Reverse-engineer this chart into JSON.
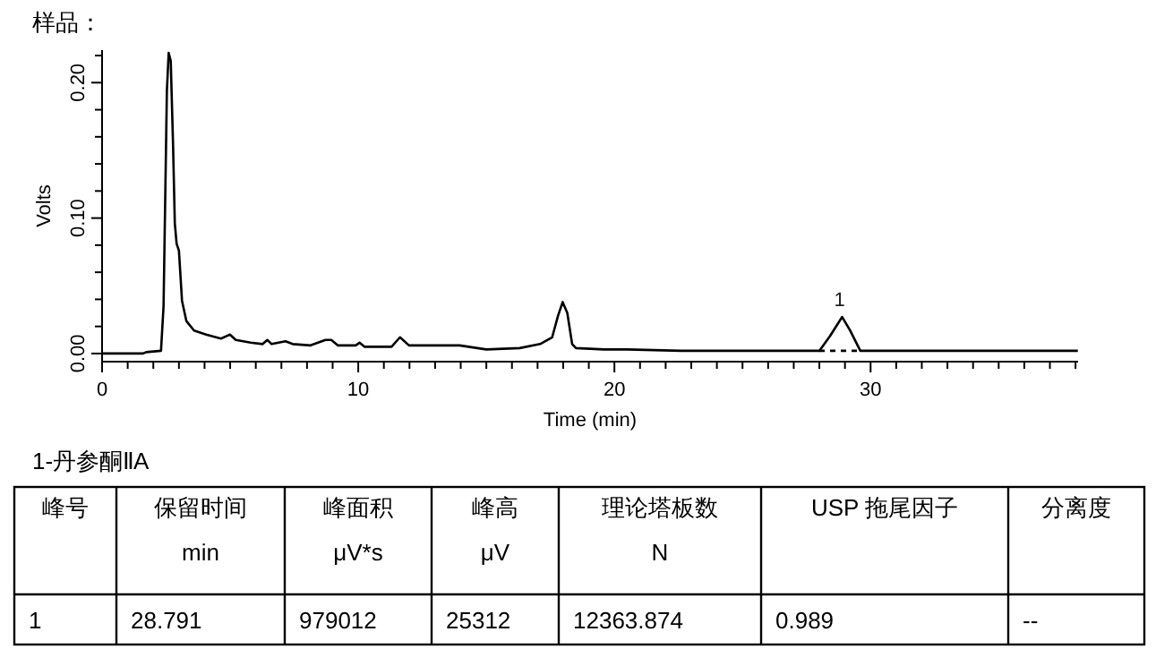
{
  "chart_data": {
    "type": "line",
    "title": "样品：",
    "xlabel": "Time (min)",
    "ylabel": "Volts",
    "xlim": [
      0,
      38.1
    ],
    "ylim": [
      -0.006,
      0.224
    ],
    "xticks": [
      0,
      {
        "value": 1,
        "label": null
      },
      {
        "value": 2,
        "label": null
      },
      {
        "value": 3,
        "label": null
      },
      {
        "value": 4,
        "label": null
      },
      {
        "value": 5,
        "label": null
      },
      {
        "value": 6,
        "label": null
      },
      {
        "value": 7,
        "label": null
      },
      {
        "value": 8,
        "label": null
      },
      {
        "value": 9,
        "label": null
      },
      10,
      {
        "value": 11,
        "label": null
      },
      {
        "value": 12,
        "label": null
      },
      {
        "value": 13,
        "label": null
      },
      {
        "value": 14,
        "label": null
      },
      {
        "value": 15,
        "label": null
      },
      {
        "value": 16,
        "label": null
      },
      {
        "value": 17,
        "label": null
      },
      {
        "value": 18,
        "label": null
      },
      {
        "value": 19,
        "label": null
      },
      20,
      {
        "value": 21,
        "label": null
      },
      {
        "value": 22,
        "label": null
      },
      {
        "value": 23,
        "label": null
      },
      {
        "value": 24,
        "label": null
      },
      {
        "value": 25,
        "label": null
      },
      {
        "value": 26,
        "label": null
      },
      {
        "value": 27,
        "label": null
      },
      {
        "value": 28,
        "label": null
      },
      {
        "value": 29,
        "label": null
      },
      30,
      {
        "value": 31,
        "label": null
      },
      {
        "value": 32,
        "label": null
      },
      {
        "value": 33,
        "label": null
      },
      {
        "value": 34,
        "label": null
      },
      {
        "value": 35,
        "label": null
      },
      {
        "value": 36,
        "label": null
      },
      {
        "value": 37,
        "label": null
      },
      {
        "value": 38,
        "label": null
      }
    ],
    "yticks": [
      {
        "value": 0,
        "label": "0.00"
      },
      {
        "value": 0.02,
        "label": null
      },
      {
        "value": 0.04,
        "label": null
      },
      {
        "value": 0.06,
        "label": null
      },
      {
        "value": 0.08,
        "label": null
      },
      {
        "value": 0.1,
        "label": "0.10"
      },
      {
        "value": 0.12,
        "label": null
      },
      {
        "value": 0.14,
        "label": null
      },
      {
        "value": 0.16,
        "label": null
      },
      {
        "value": 0.18,
        "label": null
      },
      {
        "value": 0.2,
        "label": "0.20"
      },
      {
        "value": 0.22,
        "label": null
      }
    ],
    "grid": false,
    "marker": "none",
    "line_style": "solid",
    "series": [
      {
        "color": "#000000",
        "x": [
          0,
          1.6,
          1.72,
          2.3,
          2.4,
          2.53,
          2.6,
          2.68,
          2.77,
          2.84,
          2.91,
          3.0,
          3.12,
          3.29,
          3.59,
          4.06,
          4.64,
          4.99,
          5.22,
          5.8,
          6.27,
          6.45,
          6.62,
          7.16,
          7.44,
          8.14,
          8.72,
          8.95,
          9.2,
          9.9,
          10.05,
          10.24,
          11.3,
          11.63,
          11.98,
          13.96,
          15.0,
          16.3,
          17.1,
          17.57,
          17.8,
          17.98,
          18.16,
          18.35,
          18.5,
          19.6,
          20.5,
          22.6,
          28.0,
          28.42,
          28.89,
          29.2,
          29.6,
          38.09
        ],
        "values": [
          0,
          0,
          0.001,
          0.002,
          0.035,
          0.194,
          0.222,
          0.216,
          0.155,
          0.096,
          0.081,
          0.076,
          0.039,
          0.024,
          0.017,
          0.014,
          0.011,
          0.014,
          0.01,
          0.008,
          0.007,
          0.01,
          0.007,
          0.009,
          0.007,
          0.006,
          0.01,
          0.01,
          0.006,
          0.006,
          0.008,
          0.005,
          0.005,
          0.012,
          0.006,
          0.006,
          0.003,
          0.004,
          0.007,
          0.012,
          0.028,
          0.038,
          0.03,
          0.007,
          0.004,
          0.003,
          0.003,
          0.002,
          0.002,
          0.013,
          0.027,
          0.017,
          0.002,
          0.002
        ]
      },
      {
        "color": "#000000",
        "line_style": "dashed",
        "x": [
          28.0,
          29.6
        ],
        "values": [
          0.002,
          0.002
        ]
      }
    ],
    "annotations": [
      {
        "text": "1",
        "x": 28.791,
        "y": 0.027
      },
      "1-丹参酮ⅡA",
      "峰号",
      "保留时间\nmin",
      "峰面积\nμV*s",
      "峰高\nμV",
      "理论塔板数\nN",
      "USP 拖尾因子",
      "分离度",
      "1",
      "28.791",
      "979012",
      "25312",
      "12363.874",
      "0.989",
      "--"
    ]
  }
}
